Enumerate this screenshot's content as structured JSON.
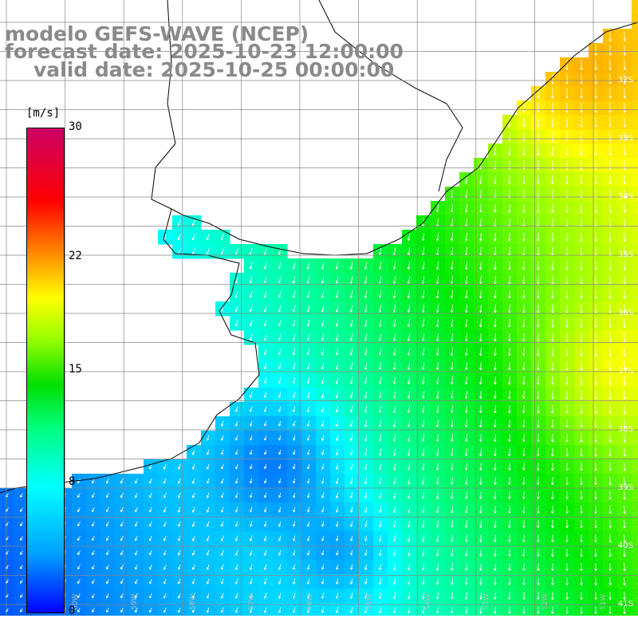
{
  "title": {
    "line1": "modelo GEFS-WAVE (NCEP)",
    "line2": "forecast date: 2025-10-23 12:00:00",
    "line3": "valid date: 2025-10-25 00:00:00"
  },
  "legend": {
    "unit": "[m/s]",
    "ticks": [
      {
        "label": "30",
        "value": 30
      },
      {
        "label": "22",
        "value": 22
      },
      {
        "label": "15",
        "value": 15
      },
      {
        "label": "8",
        "value": 8
      },
      {
        "label": "0",
        "value": 0
      }
    ],
    "colors": [
      "#0000ff",
      "#00a0ff",
      "#00ffff",
      "#00ff80",
      "#00e000",
      "#a0ff00",
      "#ffff00",
      "#ff8000",
      "#ff0000",
      "#cc0066"
    ]
  },
  "grid": {
    "lat_labels": [
      "32S",
      "33S",
      "34S",
      "35S",
      "36S",
      "37S",
      "38S",
      "39S",
      "40S",
      "41S"
    ],
    "lon_labels": [
      "60W",
      "59W",
      "58W",
      "57W",
      "56W",
      "55W",
      "54W",
      "53W",
      "52W",
      "51W"
    ]
  },
  "colors": {
    "land": "#ffffff",
    "coast": "#000000",
    "grid": "#888888",
    "arrows": "#ffffff",
    "title_text": "#8a8a8a"
  }
}
